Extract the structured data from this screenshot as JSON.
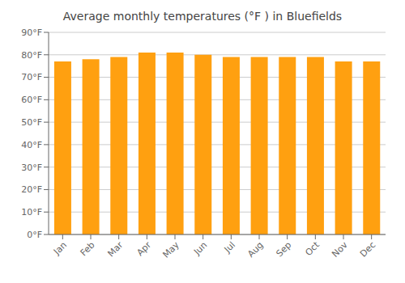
{
  "chart_data": {
    "type": "bar",
    "title": "Average monthly temperatures (°F ) in Bluefields",
    "categories": [
      "Jan",
      "Feb",
      "Mar",
      "Apr",
      "May",
      "Jun",
      "Jul",
      "Aug",
      "Sep",
      "Oct",
      "Nov",
      "Dec"
    ],
    "values": [
      77,
      78,
      79,
      81,
      81,
      80,
      79,
      79,
      79,
      79,
      77,
      77
    ],
    "color": "#ffa010",
    "ylim": [
      0,
      90
    ],
    "yticks": [
      {
        "value": 0,
        "label": "0°F"
      },
      {
        "value": 10,
        "label": "10°F"
      },
      {
        "value": 20,
        "label": "20°F"
      },
      {
        "value": 30,
        "label": "30°F"
      },
      {
        "value": 40,
        "label": "40°F"
      },
      {
        "value": 50,
        "label": "50°F"
      },
      {
        "value": 60,
        "label": "60°F"
      },
      {
        "value": 70,
        "label": "70°F"
      },
      {
        "value": 80,
        "label": "80°F"
      },
      {
        "value": 90,
        "label": "90°F"
      }
    ],
    "grid": true
  }
}
